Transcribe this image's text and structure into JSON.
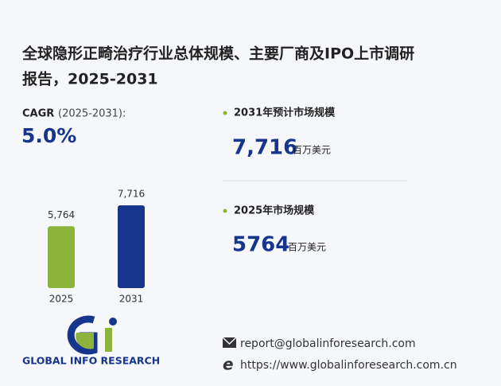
{
  "chart_data": {
    "type": "bar",
    "title": [
      "全球隐形正畸治疗行业总体规模、主要厂商及IPO上市调研",
      "报告，2025-2031"
    ],
    "categories": [
      "2025",
      "2031"
    ],
    "values": [
      5764,
      7716
    ],
    "value_labels": [
      "5,764",
      "7,716"
    ],
    "colors": [
      "#8cb43a",
      "#17358c"
    ]
  },
  "cagr": {
    "label": "CAGR",
    "period": "(2025-2031):",
    "value": "5.0%"
  },
  "stats": [
    {
      "label": "2031年预计市场规模",
      "value": "7,716",
      "unit": "百万美元"
    },
    {
      "label": "2025年市场规模",
      "value": "5764",
      "unit": "百万美元"
    }
  ],
  "footer": {
    "logo": "GLOBAL INFO RESEARCH",
    "email": "report@globalinforesearch.com",
    "url": "https://www.globalinforesearch.com.cn"
  }
}
